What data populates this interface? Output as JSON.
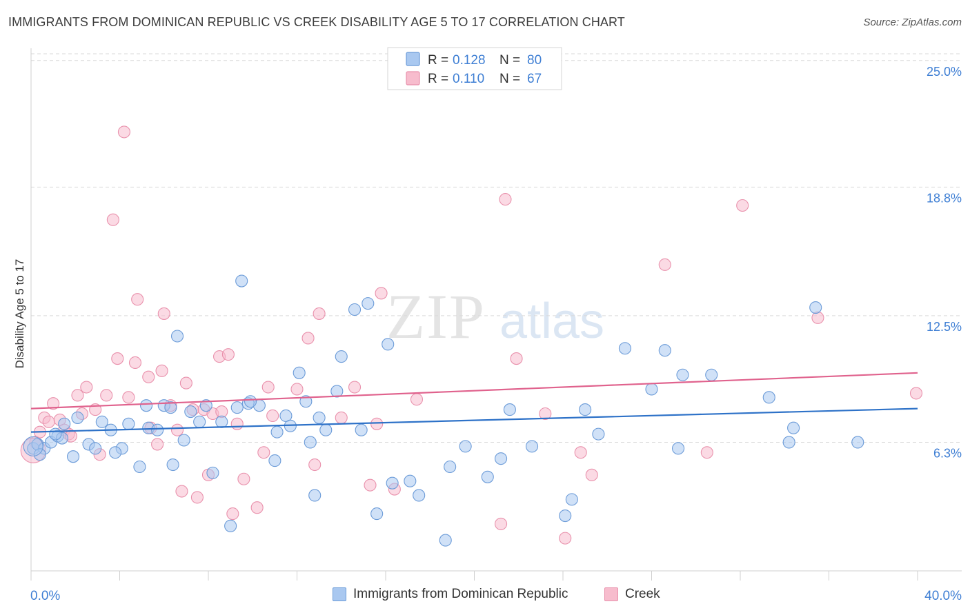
{
  "header": {
    "title": "IMMIGRANTS FROM DOMINICAN REPUBLIC VS CREEK DISABILITY AGE 5 TO 17 CORRELATION CHART",
    "source": "Source: ZipAtlas.com"
  },
  "watermark": {
    "zip": "ZIP",
    "atlas": "atlas"
  },
  "legend_top": [
    {
      "r_label": "R =",
      "r_value": "0.128",
      "n_label": "N =",
      "n_value": "80"
    },
    {
      "r_label": "R =",
      "r_value": "0.110",
      "n_label": "N =",
      "n_value": "67"
    }
  ],
  "colors": {
    "blue_fill": "#a9c8f0",
    "blue_stroke": "#6b9bd8",
    "blue_line": "#2e72c8",
    "pink_fill": "#f7bccd",
    "pink_stroke": "#e991ac",
    "pink_line": "#e0628d",
    "value_text": "#3f7fd4",
    "grid": "#d9d9d9"
  },
  "chart_data": {
    "type": "scatter",
    "title": "IMMIGRANTS FROM DOMINICAN REPUBLIC VS CREEK DISABILITY AGE 5 TO 17 CORRELATION CHART",
    "xlabel": "",
    "ylabel": "Disability Age 5 to 17",
    "xlim": [
      0,
      40
    ],
    "ylim": [
      0,
      25.6
    ],
    "x_tick_labels": [
      "0.0%",
      "40.0%"
    ],
    "y_ticks": [
      6.3,
      12.5,
      18.8,
      25.0
    ],
    "y_tick_labels": [
      "6.3%",
      "12.5%",
      "18.8%",
      "25.0%"
    ],
    "grid": true,
    "legend_position": "top-center",
    "series": [
      {
        "name": "Immigrants from Dominican Republic",
        "color": "#a9c8f0",
        "r": "0.128",
        "n": "80",
        "trend": [
          [
            0,
            6.8
          ],
          [
            40,
            7.95
          ]
        ],
        "points": [
          [
            0.1,
            6.0
          ],
          [
            0.3,
            6.2
          ],
          [
            0.6,
            6.0
          ],
          [
            0.9,
            6.3
          ],
          [
            1.2,
            6.6
          ],
          [
            1.4,
            6.5
          ],
          [
            0.4,
            5.7
          ],
          [
            1.9,
            5.6
          ],
          [
            1.5,
            7.2
          ],
          [
            2.6,
            6.2
          ],
          [
            2.9,
            6.0
          ],
          [
            3.2,
            7.3
          ],
          [
            3.6,
            6.9
          ],
          [
            4.1,
            6.0
          ],
          [
            4.4,
            7.2
          ],
          [
            3.8,
            5.8
          ],
          [
            4.9,
            5.1
          ],
          [
            5.2,
            8.1
          ],
          [
            5.3,
            7.0
          ],
          [
            5.7,
            6.9
          ],
          [
            6.0,
            8.1
          ],
          [
            6.3,
            8.0
          ],
          [
            6.4,
            5.2
          ],
          [
            6.6,
            11.5
          ],
          [
            6.9,
            6.4
          ],
          [
            7.2,
            7.8
          ],
          [
            7.6,
            7.3
          ],
          [
            7.9,
            8.1
          ],
          [
            8.2,
            4.8
          ],
          [
            8.6,
            7.3
          ],
          [
            9.0,
            2.2
          ],
          [
            9.3,
            8.0
          ],
          [
            9.5,
            14.2
          ],
          [
            9.8,
            8.2
          ],
          [
            10.3,
            8.1
          ],
          [
            11.0,
            5.4
          ],
          [
            11.1,
            6.8
          ],
          [
            11.5,
            7.6
          ],
          [
            11.7,
            7.1
          ],
          [
            12.1,
            9.7
          ],
          [
            12.4,
            8.3
          ],
          [
            12.6,
            6.3
          ],
          [
            12.8,
            3.7
          ],
          [
            13.0,
            7.5
          ],
          [
            13.3,
            6.9
          ],
          [
            13.8,
            8.8
          ],
          [
            14.0,
            10.5
          ],
          [
            14.6,
            12.8
          ],
          [
            14.9,
            6.9
          ],
          [
            15.2,
            13.1
          ],
          [
            15.6,
            2.8
          ],
          [
            16.1,
            11.1
          ],
          [
            16.3,
            4.3
          ],
          [
            17.1,
            4.4
          ],
          [
            17.5,
            3.7
          ],
          [
            18.7,
            1.5
          ],
          [
            18.9,
            5.1
          ],
          [
            19.6,
            6.1
          ],
          [
            20.6,
            4.6
          ],
          [
            21.2,
            5.5
          ],
          [
            21.6,
            7.9
          ],
          [
            22.6,
            6.1
          ],
          [
            24.1,
            2.7
          ],
          [
            24.4,
            3.5
          ],
          [
            25.0,
            7.9
          ],
          [
            25.6,
            6.7
          ],
          [
            26.8,
            10.9
          ],
          [
            28.0,
            8.9
          ],
          [
            28.6,
            10.8
          ],
          [
            29.2,
            6.0
          ],
          [
            29.4,
            9.6
          ],
          [
            30.7,
            9.6
          ],
          [
            33.3,
            8.5
          ],
          [
            34.2,
            6.3
          ],
          [
            34.4,
            7.0
          ],
          [
            35.4,
            12.9
          ],
          [
            37.3,
            6.3
          ],
          [
            1.1,
            6.7
          ],
          [
            2.1,
            7.5
          ],
          [
            9.9,
            8.3
          ]
        ]
      },
      {
        "name": "Creek",
        "color": "#f7bccd",
        "r": "0.110",
        "n": "67",
        "trend": [
          [
            0,
            7.95
          ],
          [
            40,
            9.7
          ]
        ],
        "points": [
          [
            0.2,
            6.3
          ],
          [
            0.4,
            6.8
          ],
          [
            0.6,
            7.5
          ],
          [
            0.8,
            7.3
          ],
          [
            1.0,
            8.2
          ],
          [
            1.3,
            7.4
          ],
          [
            1.5,
            6.9
          ],
          [
            1.7,
            6.7
          ],
          [
            1.8,
            6.6
          ],
          [
            2.1,
            8.6
          ],
          [
            2.3,
            7.7
          ],
          [
            2.5,
            9.0
          ],
          [
            2.9,
            7.9
          ],
          [
            3.1,
            5.7
          ],
          [
            3.4,
            8.6
          ],
          [
            3.7,
            17.2
          ],
          [
            3.9,
            10.4
          ],
          [
            4.2,
            21.5
          ],
          [
            4.4,
            8.5
          ],
          [
            4.7,
            10.2
          ],
          [
            4.8,
            13.3
          ],
          [
            5.3,
            9.5
          ],
          [
            5.4,
            7.0
          ],
          [
            5.7,
            6.2
          ],
          [
            5.9,
            9.8
          ],
          [
            6.0,
            12.6
          ],
          [
            6.3,
            8.1
          ],
          [
            6.6,
            6.9
          ],
          [
            6.8,
            3.9
          ],
          [
            7.0,
            9.2
          ],
          [
            7.3,
            7.9
          ],
          [
            7.5,
            3.6
          ],
          [
            7.8,
            7.9
          ],
          [
            8.0,
            4.7
          ],
          [
            8.2,
            7.7
          ],
          [
            8.5,
            10.5
          ],
          [
            8.6,
            7.8
          ],
          [
            8.9,
            10.6
          ],
          [
            9.1,
            2.8
          ],
          [
            9.3,
            7.2
          ],
          [
            9.6,
            4.5
          ],
          [
            10.2,
            3.1
          ],
          [
            10.5,
            5.8
          ],
          [
            10.7,
            9.0
          ],
          [
            10.9,
            7.6
          ],
          [
            12.0,
            8.9
          ],
          [
            12.5,
            11.4
          ],
          [
            12.8,
            5.2
          ],
          [
            13.0,
            12.6
          ],
          [
            14.0,
            7.5
          ],
          [
            14.6,
            9.0
          ],
          [
            15.3,
            4.2
          ],
          [
            15.6,
            7.2
          ],
          [
            15.8,
            13.6
          ],
          [
            16.4,
            4.0
          ],
          [
            17.4,
            8.4
          ],
          [
            21.2,
            2.3
          ],
          [
            21.4,
            18.2
          ],
          [
            21.9,
            10.4
          ],
          [
            23.2,
            7.7
          ],
          [
            24.1,
            1.6
          ],
          [
            24.8,
            5.8
          ],
          [
            25.3,
            4.7
          ],
          [
            28.6,
            15.0
          ],
          [
            30.5,
            5.8
          ],
          [
            32.1,
            17.9
          ],
          [
            35.5,
            12.4
          ]
        ]
      }
    ],
    "extra_points": [
      {
        "series": 1,
        "x": 40.0,
        "y": 8.7
      }
    ]
  },
  "legend_bottom": [
    {
      "label": "Immigrants from Dominican Republic"
    },
    {
      "label": "Creek"
    }
  ]
}
